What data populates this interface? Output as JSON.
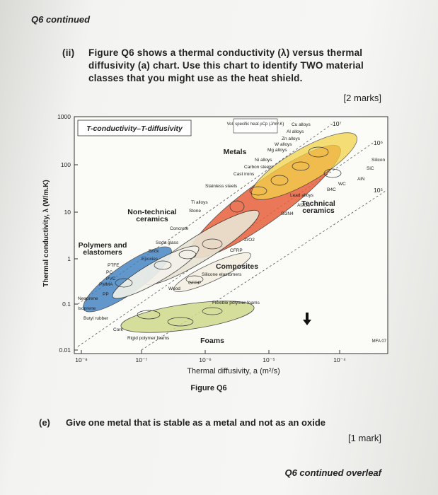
{
  "header": "Q6 continued",
  "part_ii": {
    "label": "(ii)",
    "text_lines": [
      "Figure Q6 shows a thermal conductivity (λ) versus thermal",
      "diffusivity (a) chart. Use this chart to identify TWO material",
      "classes that you might use as the heat shield."
    ],
    "marks": "[2 marks]"
  },
  "figure": {
    "title": "T-conductivity–T-diffusivity",
    "y_axis_label": "Thermal conductivity, λ (W/m.K)",
    "x_axis_label": "Thermal diffusivity, a (m²/s)",
    "yticks": [
      "1000",
      "100",
      "10",
      "1",
      "0.1",
      "0.01"
    ],
    "xticks": [
      "10⁻⁸",
      "10⁻⁷",
      "10⁻⁶",
      "10⁻⁵",
      "10⁻⁴"
    ],
    "classes": [
      [
        "Metals"
      ],
      [
        "Non-technical",
        "ceramics"
      ],
      [
        "Polymers and",
        "elastomers"
      ],
      [
        "Composites"
      ],
      [
        "Foams"
      ],
      [
        "Technical",
        "ceramics"
      ]
    ],
    "materials": [
      "Cu alloys",
      "Al alloys",
      "Zn alloys",
      "W alloys",
      "Mg alloys",
      "Ni alloys",
      "Carbon steels",
      "Cast irons",
      "Stainless steels",
      "Ti alloys",
      "Lead alloys",
      "SiC",
      "Silicon",
      "AlN",
      "WC",
      "B4C",
      "Al2O3",
      "Si3N4",
      "ZrO2",
      "Stone",
      "Concrete",
      "Soda glass",
      "Brick",
      "Epoxies",
      "PTFE",
      "PC",
      "PVC",
      "PMMA",
      "PP",
      "Neoprene",
      "Isoprene",
      "Butyl rubber",
      "Cork",
      "Silicone elastomers",
      "GFRP",
      "CFRP",
      "Wood",
      "Flexible polymer foams",
      "Rigid polymer foams"
    ],
    "heat_capacity": {
      "label": "Vol. specific heat ρCp (J/m³.K)",
      "values": [
        "10⁷",
        "10⁶",
        "10⁵"
      ]
    },
    "credit": "MFA 07",
    "caption": "Figure Q6"
  },
  "part_e": {
    "label": "(e)",
    "text": "Give one metal that is stable as a metal and not as an oxide",
    "marks": "[1 mark]"
  },
  "footer": "Q6 continued overleaf"
}
